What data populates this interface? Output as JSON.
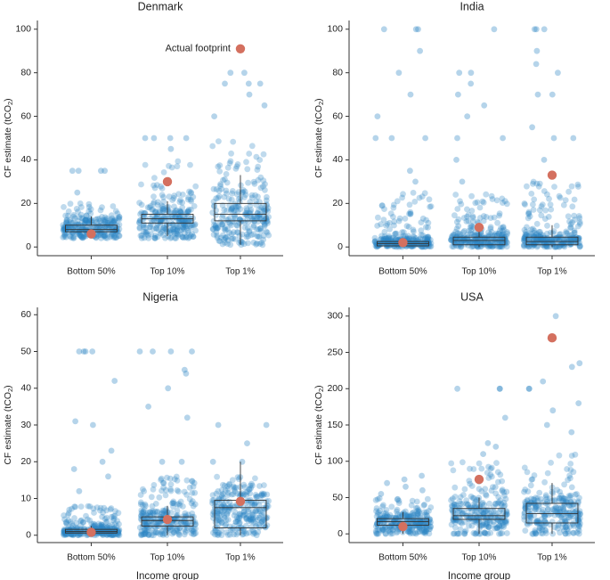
{
  "chart_data": [
    {
      "type": "scatter",
      "title": "Denmark",
      "xlabel": "",
      "ylabel": "CF estimate (tCO",
      "ylabel_sub": "2",
      "ylabel_close": ")",
      "categories": [
        "Bottom 50%",
        "Top 10%",
        "Top 1%"
      ],
      "ylim": [
        -4,
        104
      ],
      "yticks": [
        0,
        20,
        40,
        60,
        80,
        100
      ],
      "ytick_labels": [
        "0",
        "20",
        "40",
        "60",
        "80",
        "100"
      ],
      "actual": [
        6,
        30,
        91
      ],
      "boxes": [
        {
          "q1": 7,
          "median": 8,
          "q3": 10,
          "wlo": 4,
          "whi": 14
        },
        {
          "q1": 11,
          "median": 13,
          "q3": 15,
          "wlo": 5,
          "whi": 21
        },
        {
          "q1": 12,
          "median": 15,
          "q3": 20,
          "wlo": 1,
          "whi": 33
        }
      ],
      "spread": [
        {
          "min": 4,
          "max": 20,
          "mode": 9,
          "tail": [
            25,
            35,
            35,
            35,
            35
          ]
        },
        {
          "min": 4,
          "max": 40,
          "mode": 13,
          "tail": [
            50,
            50,
            50,
            45,
            50
          ]
        },
        {
          "min": 1,
          "max": 50,
          "mode": 15,
          "tail": [
            60,
            65,
            70,
            75,
            75,
            80,
            80,
            75
          ]
        }
      ],
      "annotation": "Actual footprint"
    },
    {
      "type": "scatter",
      "title": "India",
      "xlabel": "",
      "ylabel": "CF estimate (tCO",
      "ylabel_sub": "2",
      "ylabel_close": ")",
      "categories": [
        "Bottom 50%",
        "Top 10%",
        "Top 1%"
      ],
      "ylim": [
        -4,
        104
      ],
      "yticks": [
        0,
        20,
        40,
        60,
        80,
        100
      ],
      "ytick_labels": [
        "0",
        "20",
        "40",
        "60",
        "80",
        "100"
      ],
      "actual": [
        2,
        9,
        33
      ],
      "boxes": [
        {
          "q1": 0.5,
          "median": 1.5,
          "q3": 2.5,
          "wlo": 0,
          "whi": 4
        },
        {
          "q1": 1,
          "median": 3,
          "q3": 4.5,
          "wlo": 0,
          "whi": 8
        },
        {
          "q1": 1,
          "median": 2.5,
          "q3": 4.5,
          "wlo": 0,
          "whi": 10
        }
      ],
      "spread": [
        {
          "min": 0,
          "max": 25,
          "mode": 2,
          "tail": [
            30,
            35,
            50,
            50,
            50,
            60,
            70,
            80,
            90,
            100,
            100,
            100
          ]
        },
        {
          "min": 0,
          "max": 25,
          "mode": 3,
          "tail": [
            30,
            40,
            50,
            50,
            60,
            65,
            70,
            75,
            80,
            80,
            100
          ]
        },
        {
          "min": 0,
          "max": 30,
          "mode": 3,
          "tail": [
            40,
            50,
            50,
            55,
            70,
            70,
            80,
            84,
            90,
            100,
            100,
            100
          ]
        }
      ],
      "annotation": ""
    },
    {
      "type": "scatter",
      "title": "Nigeria",
      "xlabel": "Income group",
      "ylabel": "CF estimate (tCO",
      "ylabel_sub": "2",
      "ylabel_close": ")",
      "categories": [
        "Bottom 50%",
        "Top 10%",
        "Top 1%"
      ],
      "ylim": [
        -2,
        62
      ],
      "yticks": [
        0,
        10,
        20,
        30,
        40,
        50,
        60
      ],
      "ytick_labels": [
        "0",
        "10",
        "20",
        "30",
        "40",
        "50",
        "60"
      ],
      "actual": [
        0.8,
        4.3,
        9.2
      ],
      "boxes": [
        {
          "q1": 0.6,
          "median": 1,
          "q3": 1.6,
          "wlo": 0,
          "whi": 2.5
        },
        {
          "q1": 2.5,
          "median": 4,
          "q3": 5,
          "wlo": 0,
          "whi": 8
        },
        {
          "q1": 2,
          "median": 7.5,
          "q3": 9.5,
          "wlo": 0,
          "whi": 20
        }
      ],
      "spread": [
        {
          "min": 0,
          "max": 8,
          "mode": 1,
          "tail": [
            12,
            16,
            18,
            20,
            23,
            30,
            31,
            42,
            50,
            50,
            50,
            50
          ]
        },
        {
          "min": 0,
          "max": 16,
          "mode": 4,
          "tail": [
            20,
            20,
            32,
            35,
            40,
            44,
            45,
            50,
            50,
            50,
            50
          ]
        },
        {
          "min": 0,
          "max": 16,
          "mode": 7,
          "tail": [
            20,
            20,
            25,
            30,
            30
          ]
        }
      ],
      "annotation": ""
    },
    {
      "type": "scatter",
      "title": "USA",
      "xlabel": "Income group",
      "ylabel": "CF estimate (tCO",
      "ylabel_sub": "2",
      "ylabel_close": ")",
      "categories": [
        "Bottom 50%",
        "Top 10%",
        "Top 1%"
      ],
      "ylim": [
        -12,
        312
      ],
      "yticks": [
        0,
        50,
        100,
        150,
        200,
        250,
        300
      ],
      "ytick_labels": [
        "0",
        "50",
        "100",
        "150",
        "200",
        "250",
        "300"
      ],
      "actual": [
        10,
        75,
        270
      ],
      "boxes": [
        {
          "q1": 12,
          "median": 17,
          "q3": 21,
          "wlo": 0,
          "whi": 30
        },
        {
          "q1": 20,
          "median": 25,
          "q3": 35,
          "wlo": 0,
          "whi": 50
        },
        {
          "q1": 15,
          "median": 28,
          "q3": 42,
          "wlo": 0,
          "whi": 70
        }
      ],
      "spread": [
        {
          "min": 0,
          "max": 50,
          "mode": 16,
          "tail": [
            55,
            60,
            65,
            70,
            75,
            80
          ]
        },
        {
          "min": 0,
          "max": 100,
          "mode": 27,
          "tail": [
            110,
            120,
            125,
            160,
            200,
            200,
            200
          ]
        },
        {
          "min": 0,
          "max": 110,
          "mode": 30,
          "tail": [
            140,
            150,
            170,
            180,
            200,
            200,
            210,
            230,
            235,
            300
          ]
        }
      ],
      "annotation": ""
    }
  ],
  "colors": {
    "dots": "#2b84c3",
    "actual": "#d4705f",
    "box": "#333333",
    "axis": "#333333"
  }
}
